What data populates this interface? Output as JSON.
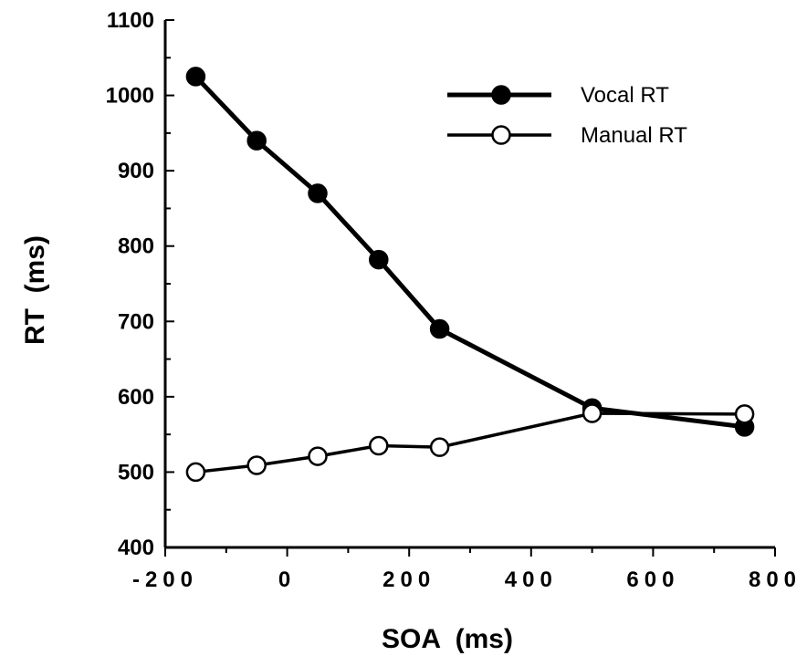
{
  "chart_data": {
    "type": "line",
    "xlabel": "SOA  (ms)",
    "ylabel": "RT  (ms)",
    "xlim": [
      -200,
      800
    ],
    "ylim": [
      400,
      1100
    ],
    "x_ticks": [
      -200,
      0,
      200,
      400,
      600,
      800
    ],
    "x_tick_labels": [
      "-200",
      "0",
      "200",
      "400",
      "600",
      "800"
    ],
    "y_ticks": [
      400,
      500,
      600,
      700,
      800,
      900,
      1000,
      1100
    ],
    "y_tick_labels": [
      "400",
      "500",
      "600",
      "700",
      "800",
      "900",
      "1000",
      "1100"
    ],
    "grid": false,
    "legend_position": "top-right",
    "series": [
      {
        "name": "Vocal RT",
        "marker": "filled-circle",
        "color": "#000000",
        "x": [
          -150,
          -50,
          50,
          150,
          250,
          500,
          750
        ],
        "y": [
          1025,
          940,
          870,
          782,
          690,
          585,
          560
        ]
      },
      {
        "name": "Manual RT",
        "marker": "open-circle",
        "color": "#000000",
        "x": [
          -150,
          -50,
          50,
          150,
          250,
          500,
          750
        ],
        "y": [
          500,
          509,
          521,
          535,
          533,
          578,
          577
        ]
      }
    ]
  }
}
